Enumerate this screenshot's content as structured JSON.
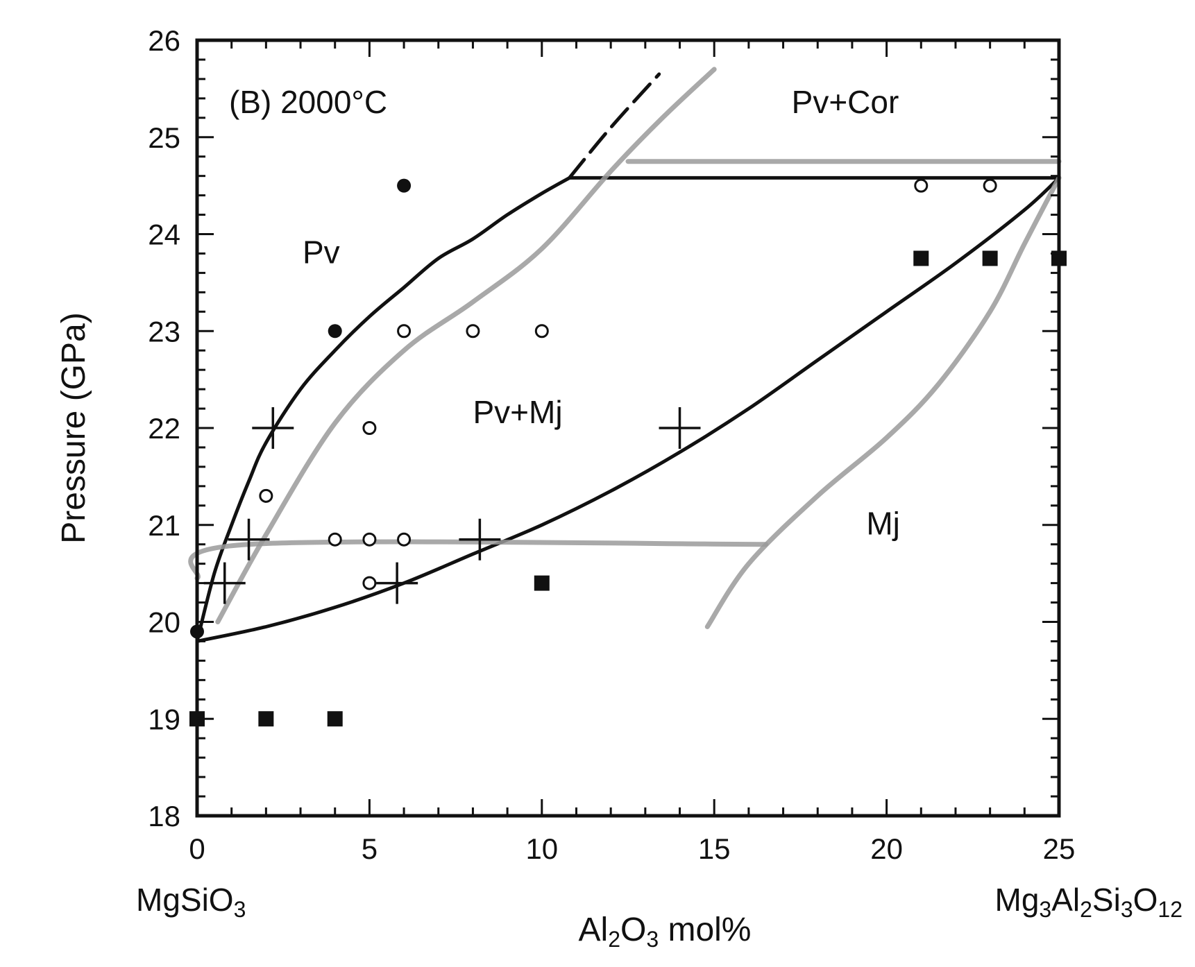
{
  "chart_data": {
    "type": "scatter",
    "title": "",
    "panel_label": "(B) 2000°C",
    "xlabel": {
      "parts": [
        {
          "t": "Al",
          "sub": false
        },
        {
          "t": "2",
          "sub": true
        },
        {
          "t": "O",
          "sub": false
        },
        {
          "t": "3",
          "sub": true
        },
        {
          "t": " mol%",
          "sub": false
        }
      ]
    },
    "ylabel": "Pressure  (GPa)",
    "x_end_labels": {
      "left": {
        "parts": [
          {
            "t": "MgSiO",
            "sub": false
          },
          {
            "t": "3",
            "sub": true
          }
        ]
      },
      "right": {
        "parts": [
          {
            "t": "Mg",
            "sub": false
          },
          {
            "t": "3",
            "sub": true
          },
          {
            "t": "Al",
            "sub": false
          },
          {
            "t": "2",
            "sub": true
          },
          {
            "t": "Si",
            "sub": false
          },
          {
            "t": "3",
            "sub": true
          },
          {
            "t": "O",
            "sub": false
          },
          {
            "t": "12",
            "sub": true
          }
        ]
      }
    },
    "xlim": [
      0,
      25
    ],
    "ylim": [
      18,
      26
    ],
    "x_major_ticks": [
      0,
      5,
      10,
      15,
      20,
      25
    ],
    "x_tick_labels": [
      "0",
      "5",
      "10",
      "15",
      "20",
      "25"
    ],
    "y_major_ticks": [
      18,
      19,
      20,
      21,
      22,
      23,
      24,
      25,
      26
    ],
    "y_tick_labels": [
      "18",
      "19",
      "20",
      "21",
      "22",
      "23",
      "24",
      "25",
      "26"
    ],
    "grid": false,
    "region_labels": [
      {
        "text": "Pv",
        "x": 3.6,
        "y": 23.7
      },
      {
        "text": "Pv+Mj",
        "x": 9.3,
        "y": 22.05
      },
      {
        "text": "Pv+Cor",
        "x": 18.8,
        "y": 25.25
      },
      {
        "text": "Mj",
        "x": 19.9,
        "y": 20.9
      }
    ],
    "colors": {
      "boundary": "#111111",
      "previous_study": "#9a9a9a",
      "marker": "#111111"
    },
    "series": [
      {
        "marker": "filled-circle",
        "points": [
          [
            0,
            19.9
          ],
          [
            4,
            23.0
          ],
          [
            6,
            24.5
          ]
        ]
      },
      {
        "marker": "open-circle",
        "points": [
          [
            2,
            21.3
          ],
          [
            4,
            20.85
          ],
          [
            5,
            20.85
          ],
          [
            6,
            20.85
          ],
          [
            5,
            20.4
          ],
          [
            5,
            22.0
          ],
          [
            6,
            23.0
          ],
          [
            8,
            23.0
          ],
          [
            10,
            23.0
          ],
          [
            21,
            24.5
          ],
          [
            23,
            24.5
          ]
        ]
      },
      {
        "marker": "plus",
        "points": [
          [
            2.2,
            22.0
          ],
          [
            1.5,
            20.85
          ],
          [
            0.8,
            20.4
          ],
          [
            5.8,
            20.4
          ],
          [
            8.2,
            20.85
          ],
          [
            14.0,
            22.0
          ]
        ]
      },
      {
        "marker": "filled-square",
        "points": [
          [
            0,
            19.0
          ],
          [
            2,
            19.0
          ],
          [
            4,
            19.0
          ],
          [
            10,
            20.4
          ],
          [
            21,
            23.75
          ],
          [
            23,
            23.75
          ],
          [
            25,
            23.75
          ]
        ]
      }
    ],
    "boundaries": [
      {
        "style": "solid",
        "points": [
          [
            0,
            19.8
          ],
          [
            0.5,
            20.5
          ],
          [
            1,
            21.0
          ],
          [
            1.5,
            21.45
          ],
          [
            2,
            21.85
          ],
          [
            3,
            22.4
          ],
          [
            4,
            22.8
          ],
          [
            5,
            23.15
          ],
          [
            6,
            23.45
          ],
          [
            7,
            23.75
          ],
          [
            8,
            23.95
          ],
          [
            9,
            24.2
          ],
          [
            10,
            24.42
          ],
          [
            10.8,
            24.58
          ]
        ]
      },
      {
        "style": "solid",
        "points": [
          [
            0,
            19.8
          ],
          [
            2,
            19.95
          ],
          [
            4,
            20.15
          ],
          [
            6,
            20.4
          ],
          [
            8,
            20.7
          ],
          [
            10,
            21.0
          ],
          [
            12,
            21.35
          ],
          [
            14,
            21.75
          ],
          [
            16,
            22.2
          ],
          [
            18,
            22.7
          ],
          [
            20,
            23.2
          ],
          [
            22,
            23.7
          ],
          [
            24,
            24.25
          ],
          [
            25,
            24.58
          ]
        ]
      },
      {
        "style": "solid",
        "points": [
          [
            10.8,
            24.58
          ],
          [
            25,
            24.58
          ]
        ]
      },
      {
        "style": "dashed",
        "points": [
          [
            10.8,
            24.58
          ],
          [
            12,
            25.1
          ],
          [
            13.4,
            25.65
          ]
        ]
      },
      {
        "style": "gray",
        "points": [
          [
            0,
            20.45
          ],
          [
            1.5,
            20.8
          ],
          [
            16.5,
            20.8
          ]
        ]
      },
      {
        "style": "gray",
        "points": [
          [
            12.5,
            24.75
          ],
          [
            25,
            24.75
          ]
        ]
      },
      {
        "style": "gray",
        "points": [
          [
            0.6,
            20.0
          ],
          [
            2,
            20.9
          ],
          [
            4,
            22.05
          ],
          [
            6,
            22.8
          ],
          [
            8,
            23.3
          ],
          [
            10,
            23.85
          ],
          [
            12,
            24.65
          ],
          [
            13.5,
            25.2
          ],
          [
            15,
            25.7
          ]
        ]
      },
      {
        "style": "gray",
        "points": [
          [
            14.8,
            19.95
          ],
          [
            16,
            20.6
          ],
          [
            18,
            21.3
          ],
          [
            20,
            21.9
          ],
          [
            21.5,
            22.45
          ],
          [
            23,
            23.2
          ],
          [
            24,
            23.9
          ],
          [
            25,
            24.58
          ]
        ]
      }
    ]
  }
}
